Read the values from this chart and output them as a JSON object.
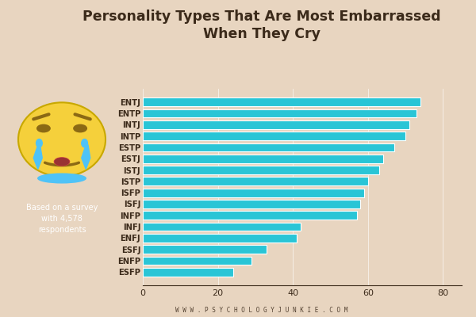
{
  "title": "Personality Types That Are Most Embarrassed\nWhen They Cry",
  "categories": [
    "ENTJ",
    "ENTP",
    "INTJ",
    "INTP",
    "ESTP",
    "ESTJ",
    "ISTJ",
    "ISTP",
    "ISFP",
    "ISFJ",
    "INFP",
    "INFJ",
    "ENFJ",
    "ESFJ",
    "ENFP",
    "ESFP"
  ],
  "values": [
    74,
    73,
    71,
    70,
    67,
    64,
    63,
    60,
    59,
    58,
    57,
    42,
    41,
    33,
    29,
    24
  ],
  "bar_color": "#29C5D6",
  "bg_color": "#E8D5C0",
  "title_color": "#3B2A1A",
  "label_color": "#3B2A1A",
  "tick_color": "#3B2A1A",
  "watermark": "W W W . P S Y C H O L O G Y J U N K I E . C O M",
  "survey_text": "Based on a survey\nwith 4,578\nrespondents",
  "xlim": [
    0,
    85
  ],
  "xticks": [
    0,
    20,
    40,
    60,
    80
  ]
}
